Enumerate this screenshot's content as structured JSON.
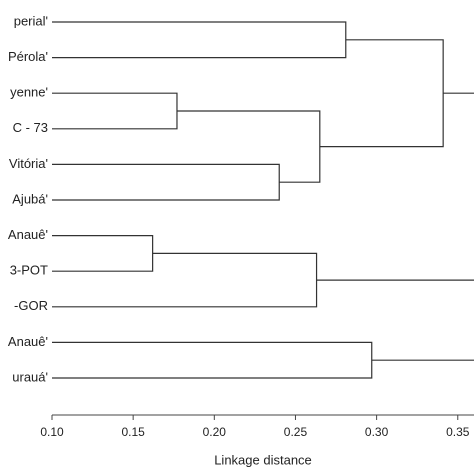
{
  "chart_data": {
    "type": "dendrogram",
    "x_label": "Linkage distance",
    "leaves": [
      "perial'",
      "Pérola'",
      "yenne'",
      "C - 73",
      "Vitória'",
      "Ajubá'",
      "Anauê'",
      "3-POT",
      "-GOR",
      "Anauê'",
      "urauá'"
    ],
    "merges": [
      {
        "children": [
          2,
          3
        ],
        "height": 0.177
      },
      {
        "children": [
          6,
          7
        ],
        "height": 0.162
      },
      {
        "children": [
          4,
          5
        ],
        "height": 0.24
      },
      {
        "children": [
          11,
          13
        ],
        "height": 0.265
      },
      {
        "children": [
          12,
          8
        ],
        "height": 0.263
      },
      {
        "children": [
          0,
          1
        ],
        "height": 0.281
      },
      {
        "children": [
          9,
          10
        ],
        "height": 0.297
      },
      {
        "children": [
          16,
          14
        ],
        "height": 0.341
      }
    ],
    "color": "#333333",
    "xlim": [
      0.1,
      0.36
    ],
    "xticks": [
      {
        "value": 0.1,
        "label": "0.10"
      },
      0.15,
      {
        "value": 0.2,
        "label": "0.20"
      },
      0.25,
      {
        "value": 0.3,
        "label": "0.30"
      },
      0.35
    ]
  }
}
